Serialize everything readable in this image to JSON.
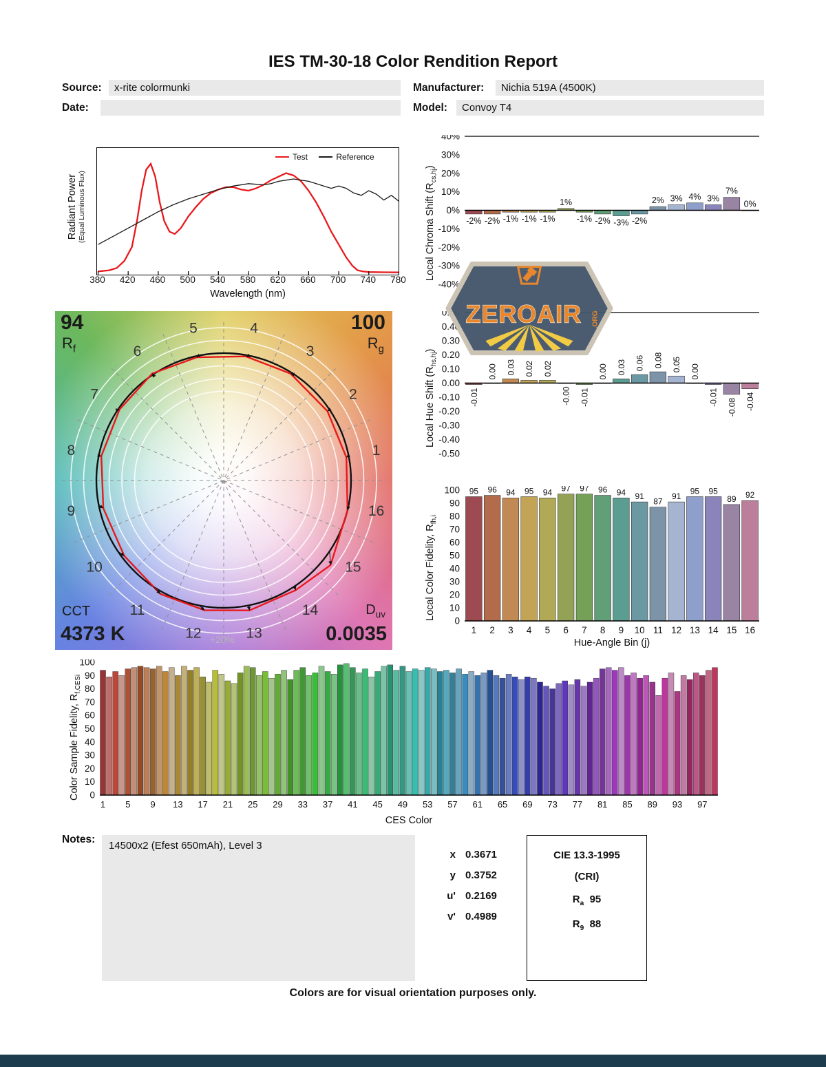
{
  "page": {
    "title": "IES TM-30-18 Color Rendition Report",
    "footer": "Colors are for visual orientation purposes only."
  },
  "header": {
    "source_label": "Source:",
    "source_value": "x-rite colormunki",
    "date_label": "Date:",
    "date_value": "",
    "manufacturer_label": "Manufacturer:",
    "manufacturer_value": "Nichia 519A (4500K)",
    "model_label": "Model:",
    "model_value": "Convoy T4"
  },
  "watermark": {
    "brand": "ZEROAIR",
    "suffix": ".ORG"
  },
  "notes": {
    "label": "Notes:",
    "value": "14500x2 (Efest 650mAh), Level 3"
  },
  "chromaticity": {
    "rows": [
      {
        "label": "x",
        "value": "0.3671"
      },
      {
        "label": "y",
        "value": "0.3752"
      },
      {
        "label": "u'",
        "value": "0.2169"
      },
      {
        "label": "v'",
        "value": "0.4989"
      }
    ]
  },
  "cri_box": {
    "title": "CIE 13.3-1995",
    "subtitle": "(CRI)",
    "rows": [
      {
        "base": "R",
        "sub": "a",
        "value": "95"
      },
      {
        "base": "R",
        "sub": "9",
        "value": "88"
      }
    ]
  },
  "colors": {
    "accent_red": "#e8191c",
    "reference_black": "#1a1a1a",
    "field_bg": "#e9e9e9",
    "bottom_bar": "#1d3c4e",
    "hue_bins": [
      "#9e4a52",
      "#b26b4b",
      "#c18a55",
      "#c3a356",
      "#b1a956",
      "#94a256",
      "#74a058",
      "#619f78",
      "#5c9d92",
      "#6a99a4",
      "#7d94a8",
      "#a5b5d1",
      "#8e9fcb",
      "#8b84ba",
      "#9985a3",
      "#bb7f9c"
    ]
  },
  "chart_data": [
    {
      "id": "spd",
      "type": "line",
      "xlabel": "Wavelength (nm)",
      "ylabel1": "Radiant Power",
      "ylabel2": "(Equal Luminous Flux)",
      "xlim": [
        380,
        780
      ],
      "xticks": [
        380,
        420,
        460,
        500,
        540,
        580,
        620,
        660,
        700,
        740,
        780
      ],
      "ylim": [
        0,
        1
      ],
      "legend": [
        {
          "name": "Test",
          "color": "#e8191c"
        },
        {
          "name": "Reference",
          "color": "#1a1a1a"
        }
      ],
      "series": [
        {
          "name": "Test",
          "color": "#e8191c",
          "width": 2.3,
          "x": [
            380,
            395,
            405,
            415,
            425,
            432,
            438,
            444,
            450,
            456,
            462,
            468,
            475,
            482,
            490,
            500,
            510,
            520,
            530,
            540,
            550,
            560,
            570,
            580,
            590,
            600,
            610,
            620,
            630,
            640,
            650,
            660,
            670,
            680,
            690,
            700,
            710,
            718,
            725,
            732,
            740,
            760,
            780
          ],
          "y": [
            0.01,
            0.02,
            0.04,
            0.1,
            0.22,
            0.45,
            0.7,
            0.88,
            0.93,
            0.82,
            0.6,
            0.44,
            0.35,
            0.33,
            0.38,
            0.48,
            0.56,
            0.63,
            0.68,
            0.71,
            0.73,
            0.73,
            0.71,
            0.7,
            0.72,
            0.75,
            0.79,
            0.82,
            0.85,
            0.83,
            0.78,
            0.7,
            0.6,
            0.48,
            0.35,
            0.24,
            0.13,
            0.06,
            0.02,
            0.01,
            0.005,
            0.003,
            0.002
          ]
        },
        {
          "name": "Reference",
          "color": "#1a1a1a",
          "width": 1.3,
          "x": [
            380,
            400,
            420,
            440,
            460,
            480,
            500,
            520,
            540,
            560,
            580,
            600,
            610,
            620,
            630,
            640,
            650,
            660,
            670,
            680,
            690,
            700,
            710,
            720,
            730,
            740,
            750,
            760,
            770,
            780
          ],
          "y": [
            0.24,
            0.31,
            0.38,
            0.45,
            0.52,
            0.58,
            0.63,
            0.67,
            0.71,
            0.74,
            0.76,
            0.75,
            0.76,
            0.78,
            0.79,
            0.8,
            0.79,
            0.78,
            0.76,
            0.74,
            0.72,
            0.74,
            0.72,
            0.68,
            0.66,
            0.7,
            0.67,
            0.62,
            0.66,
            0.61
          ]
        }
      ]
    },
    {
      "id": "chroma_shift",
      "type": "bar",
      "ylabel_pre": "Local Chroma Shift (R",
      "ylabel_sub": "cs,hj",
      "ylabel_post": ")",
      "categories": [
        1,
        2,
        3,
        4,
        5,
        6,
        7,
        8,
        9,
        10,
        11,
        12,
        13,
        14,
        15,
        16
      ],
      "values": [
        -2,
        -2,
        -1,
        -1,
        -1,
        1,
        -1,
        -2,
        -3,
        -2,
        2,
        3,
        4,
        3,
        7,
        0
      ],
      "labels": [
        "-2%",
        "-2%",
        "-1%",
        "-1%",
        "-1%",
        "1%",
        "-1%",
        "-2%",
        "-3%",
        "-2%",
        "2%",
        "3%",
        "4%",
        "3%",
        "7%",
        "0%"
      ],
      "ylim": [
        -40,
        40
      ],
      "yticks": [
        "40%",
        "30%",
        "20%",
        "10%",
        "0%",
        "-10%",
        "-20%",
        "-30%",
        "-40%"
      ]
    },
    {
      "id": "hue_shift",
      "type": "bar",
      "ylabel_pre": "Local Hue Shift (R",
      "ylabel_sub": "hs,hj",
      "ylabel_post": ")",
      "categories": [
        1,
        2,
        3,
        4,
        5,
        6,
        7,
        8,
        9,
        10,
        11,
        12,
        13,
        14,
        15,
        16
      ],
      "values": [
        -0.01,
        0,
        0.03,
        0.02,
        0.02,
        0,
        -0.01,
        0,
        0.03,
        0.06,
        0.08,
        0.05,
        0,
        -0.01,
        -0.08,
        -0.04
      ],
      "labels": [
        "-0.01",
        "0.00",
        "0.03",
        "0.02",
        "0.02",
        "-0.00",
        "-0.01",
        "0.00",
        "0.03",
        "0.06",
        "0.08",
        "0.05",
        "0.00",
        "-0.01",
        "-0.08",
        "-0.04"
      ],
      "ylim": [
        -0.5,
        0.5
      ],
      "yticks": [
        "0.50",
        "0.40",
        "0.30",
        "0.20",
        "0.10",
        "0.00",
        "-0.10",
        "-0.20",
        "-0.30",
        "-0.40",
        "-0.50"
      ]
    },
    {
      "id": "local_color_fidelity",
      "type": "bar",
      "ylabel_pre": "Local Color Fidelity, R",
      "ylabel_sub": "fh,i",
      "ylabel_post": "",
      "xlabel": "Hue-Angle Bin (j)",
      "categories": [
        1,
        2,
        3,
        4,
        5,
        6,
        7,
        8,
        9,
        10,
        11,
        12,
        13,
        14,
        15,
        16
      ],
      "values": [
        95,
        96,
        94,
        95,
        94,
        97,
        97,
        96,
        94,
        91,
        87,
        91,
        95,
        95,
        89,
        92
      ],
      "ylim": [
        0,
        100
      ],
      "yticks": [
        "100",
        "90",
        "80",
        "70",
        "60",
        "50",
        "40",
        "30",
        "20",
        "10",
        "0"
      ]
    },
    {
      "id": "ces_fidelity",
      "type": "bar",
      "ylabel_pre": "Color Sample Fidelity, R",
      "ylabel_sub": "f,CESi",
      "ylabel_post": "",
      "xlabel": "CES Color",
      "xticks": [
        1,
        5,
        9,
        13,
        17,
        21,
        25,
        29,
        33,
        37,
        41,
        45,
        49,
        53,
        57,
        61,
        65,
        69,
        73,
        77,
        81,
        85,
        89,
        93,
        97
      ],
      "values": [
        94,
        89,
        93,
        90,
        95,
        96,
        97,
        96,
        95,
        97,
        93,
        96,
        90,
        97,
        94,
        96,
        89,
        85,
        94,
        91,
        86,
        84,
        92,
        97,
        96,
        90,
        93,
        88,
        91,
        94,
        87,
        94,
        96,
        90,
        92,
        97,
        93,
        91,
        98,
        99,
        96,
        92,
        95,
        89,
        93,
        97,
        98,
        94,
        97,
        93,
        95,
        94,
        96,
        95,
        93,
        94,
        92,
        95,
        91,
        93,
        90,
        92,
        94,
        90,
        88,
        91,
        89,
        87,
        89,
        88,
        85,
        82,
        80,
        84,
        86,
        83,
        87,
        82,
        85,
        88,
        95,
        96,
        94,
        96,
        90,
        92,
        88,
        90,
        85,
        75,
        88,
        92,
        78,
        90,
        87,
        92,
        90,
        94,
        96
      ],
      "ylim": [
        0,
        100
      ],
      "yticks": [
        "100",
        "90",
        "80",
        "70",
        "60",
        "50",
        "40",
        "30",
        "20",
        "10",
        "0"
      ]
    },
    {
      "id": "color_vector",
      "type": "radar",
      "rf_value": "94",
      "rf_base": "R",
      "rf_sub": "f",
      "rg_value": "100",
      "rg_base": "R",
      "rg_sub": "g",
      "cct_label": "CCT",
      "cct_value": "4373 K",
      "duv_base": "D",
      "duv_sub": "uv",
      "duv_value": "0.0035",
      "ring_label": "+20%",
      "bin_labels": [
        "1",
        "2",
        "3",
        "4",
        "5",
        "6",
        "7",
        "8",
        "9",
        "10",
        "11",
        "12",
        "13",
        "14",
        "15",
        "16"
      ],
      "test_radius_factor": [
        0.98,
        0.98,
        0.99,
        0.99,
        0.99,
        1.01,
        0.99,
        0.98,
        0.97,
        0.98,
        1.02,
        1.03,
        1.04,
        1.03,
        1.07,
        1.0
      ],
      "test_hue_shift_rad": [
        -0.01,
        0,
        0.03,
        0.02,
        0.02,
        0,
        -0.01,
        0,
        0.03,
        0.06,
        0.08,
        0.05,
        0,
        -0.01,
        -0.08,
        -0.04
      ],
      "test_color": "#e8191c",
      "reference_color": "#111111"
    }
  ]
}
